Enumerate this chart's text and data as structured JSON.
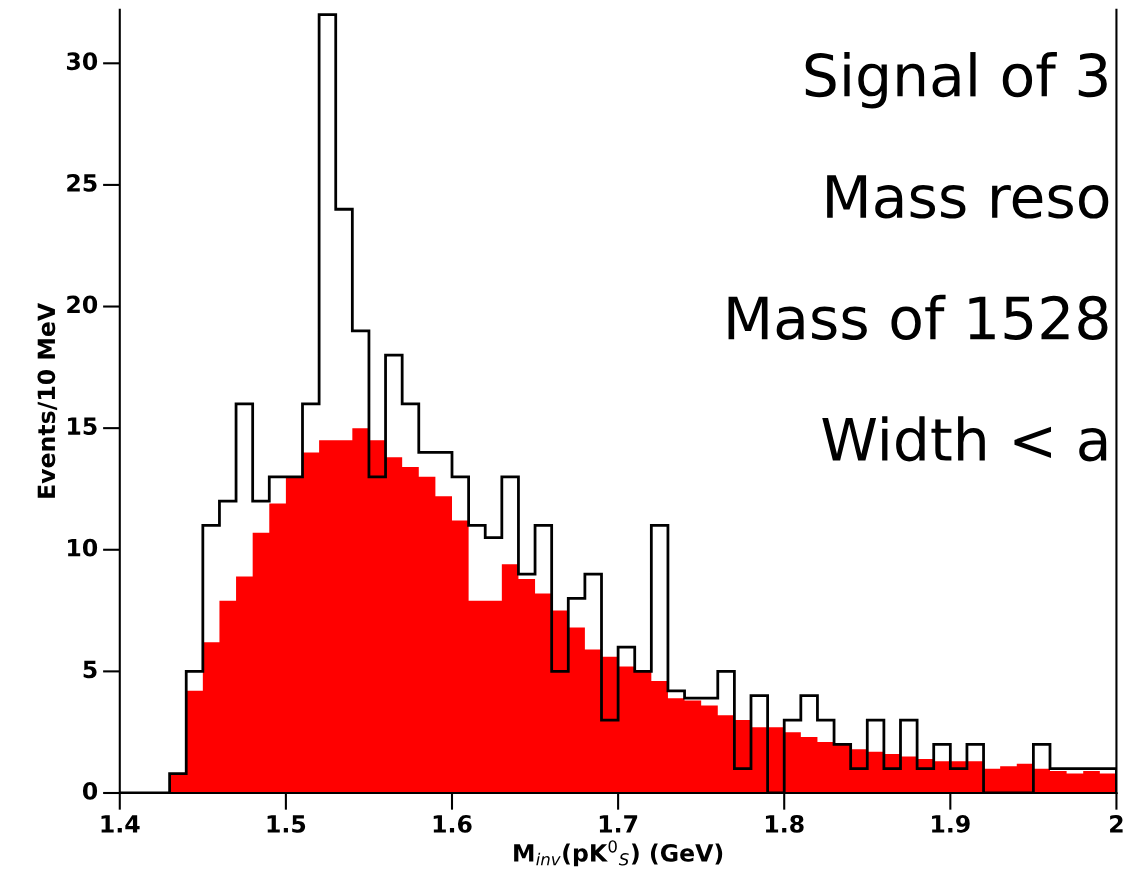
{
  "chart_data": {
    "type": "histogram",
    "xlabel": "M$_{inv}$(pK$^{0}$$_{S}$) (GeV)",
    "ylabel": "Events/10 MeV",
    "annotations": [
      "Signal of 3",
      "Mass reso",
      "Mass of 1528",
      "Width < a"
    ],
    "bins": [
      1.4,
      1.41,
      1.42,
      1.43,
      1.44,
      1.45,
      1.46,
      1.47,
      1.48,
      1.49,
      1.5,
      1.51,
      1.52,
      1.53,
      1.54,
      1.55,
      1.56,
      1.57,
      1.58,
      1.59,
      1.6,
      1.61,
      1.62,
      1.63,
      1.64,
      1.65,
      1.66,
      1.67,
      1.68,
      1.69,
      1.7,
      1.71,
      1.72,
      1.73,
      1.74,
      1.75,
      1.76,
      1.77,
      1.78,
      1.79,
      1.8,
      1.81,
      1.82,
      1.83,
      1.84,
      1.85,
      1.86,
      1.87,
      1.88,
      1.89,
      1.9,
      1.91,
      1.92,
      1.93,
      1.94,
      1.95,
      1.96,
      1.97,
      1.98,
      1.99,
      2.0
    ],
    "series": [
      {
        "color": "#ff0000",
        "values": [
          0,
          0,
          0,
          0.8,
          4.2,
          6.2,
          7.9,
          8.9,
          10.7,
          11.9,
          13.0,
          14.0,
          14.5,
          14.5,
          15.0,
          14.5,
          13.8,
          13.4,
          13.0,
          12.2,
          11.2,
          7.9,
          7.9,
          9.4,
          8.8,
          8.2,
          7.5,
          6.8,
          5.9,
          5.6,
          5.2,
          5.0,
          4.6,
          3.9,
          3.8,
          3.6,
          3.2,
          3.0,
          2.7,
          2.7,
          2.5,
          2.3,
          2.1,
          2.0,
          1.8,
          1.7,
          1.6,
          1.5,
          1.4,
          1.3,
          1.3,
          1.3,
          1.0,
          1.1,
          1.2,
          1.0,
          0.9,
          0.8,
          0.9,
          0.8
        ]
      },
      {
        "color": "#000000",
        "values": [
          0,
          0,
          0,
          0.8,
          5,
          11,
          12,
          16,
          12,
          13,
          13,
          16,
          32,
          24,
          19,
          13,
          18,
          16,
          14,
          14,
          13,
          11,
          10.5,
          13,
          9,
          11,
          5,
          8,
          9,
          3,
          6,
          5,
          11,
          4.2,
          3.9,
          3.9,
          5,
          1,
          4,
          0,
          3,
          4,
          3,
          2,
          1,
          3,
          1,
          3,
          1,
          2,
          1,
          2,
          0,
          0,
          0,
          2,
          1,
          1,
          1,
          1
        ]
      }
    ],
    "xlim": [
      1.4,
      2.0
    ],
    "xticks": [
      1.4,
      1.5,
      1.6,
      1.7,
      1.8,
      1.9,
      2
    ],
    "ylim": [
      0,
      32.2
    ],
    "yticks": [
      0,
      5,
      10,
      15,
      20,
      25,
      30
    ],
    "grid": false
  }
}
